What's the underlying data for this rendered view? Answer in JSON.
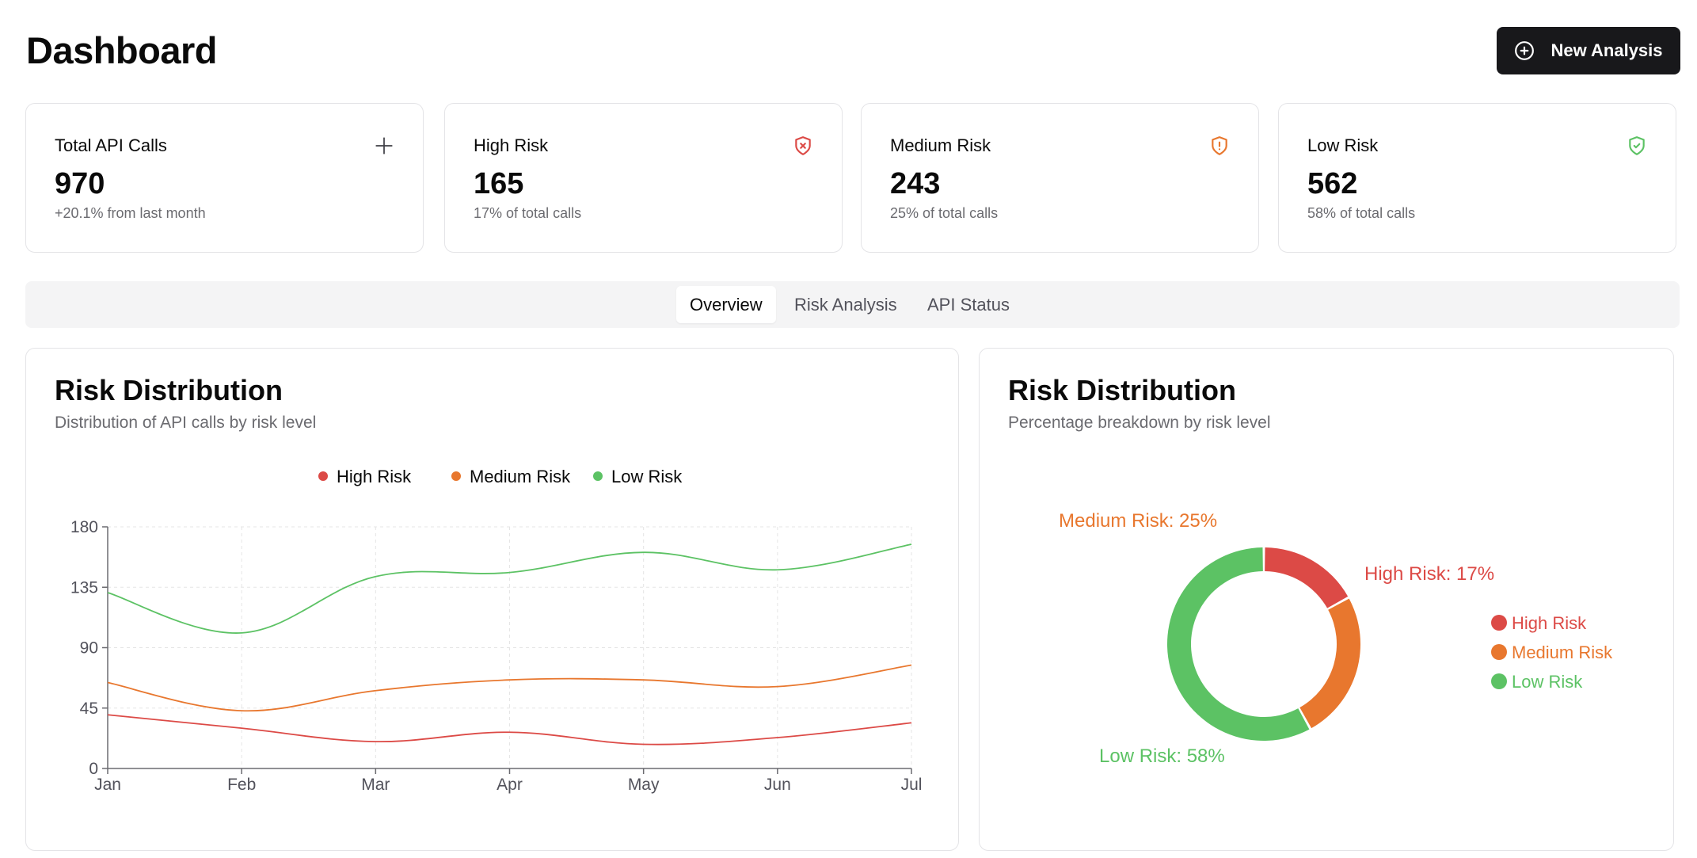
{
  "header": {
    "title": "Dashboard",
    "new_button_label": "New Analysis"
  },
  "stats": [
    {
      "label": "Total API Calls",
      "value": "970",
      "sub": "+20.1% from last month",
      "icon": "plus-icon",
      "color": "#3f3f46"
    },
    {
      "label": "High Risk",
      "value": "165",
      "sub": "17% of total calls",
      "icon": "shield-x-icon",
      "color": "#dc4a46"
    },
    {
      "label": "Medium Risk",
      "value": "243",
      "sub": "25% of total calls",
      "icon": "shield-alert-icon",
      "color": "#e8772e"
    },
    {
      "label": "Low Risk",
      "value": "562",
      "sub": "58% of total calls",
      "icon": "shield-check-icon",
      "color": "#5cc264"
    }
  ],
  "tabs": [
    {
      "label": "Overview",
      "active": true
    },
    {
      "label": "Risk Analysis",
      "active": false
    },
    {
      "label": "API Status",
      "active": false
    }
  ],
  "line_panel": {
    "title": "Risk Distribution",
    "subtitle": "Distribution of API calls by risk level"
  },
  "pie_panel": {
    "title": "Risk Distribution",
    "subtitle": "Percentage breakdown by risk level"
  },
  "colors": {
    "high": "#dc4a46",
    "medium": "#e8772e",
    "low": "#5cc264"
  },
  "chart_data": [
    {
      "type": "line",
      "x": [
        "Jan",
        "Feb",
        "Mar",
        "Apr",
        "May",
        "Jun",
        "Jul"
      ],
      "ylim": [
        0,
        180
      ],
      "yticks": [
        0,
        45,
        90,
        135,
        180
      ],
      "grid": true,
      "legend_position": "top-center",
      "series": [
        {
          "name": "High Risk",
          "color": "#dc4a46",
          "values": [
            40,
            30,
            20,
            27,
            18,
            23,
            34
          ]
        },
        {
          "name": "Medium Risk",
          "color": "#e8772e",
          "values": [
            64,
            43,
            58,
            66,
            66,
            61,
            77
          ]
        },
        {
          "name": "Low Risk",
          "color": "#5cc264",
          "values": [
            131,
            101,
            143,
            146,
            161,
            148,
            167
          ]
        }
      ]
    },
    {
      "type": "pie",
      "legend_position": "right",
      "slices": [
        {
          "name": "High Risk",
          "label": "High Risk: 17%",
          "value": 17,
          "color": "#dc4a46"
        },
        {
          "name": "Medium Risk",
          "label": "Medium Risk: 25%",
          "value": 25,
          "color": "#e8772e"
        },
        {
          "name": "Low Risk",
          "label": "Low Risk: 58%",
          "value": 58,
          "color": "#5cc264"
        }
      ]
    }
  ]
}
